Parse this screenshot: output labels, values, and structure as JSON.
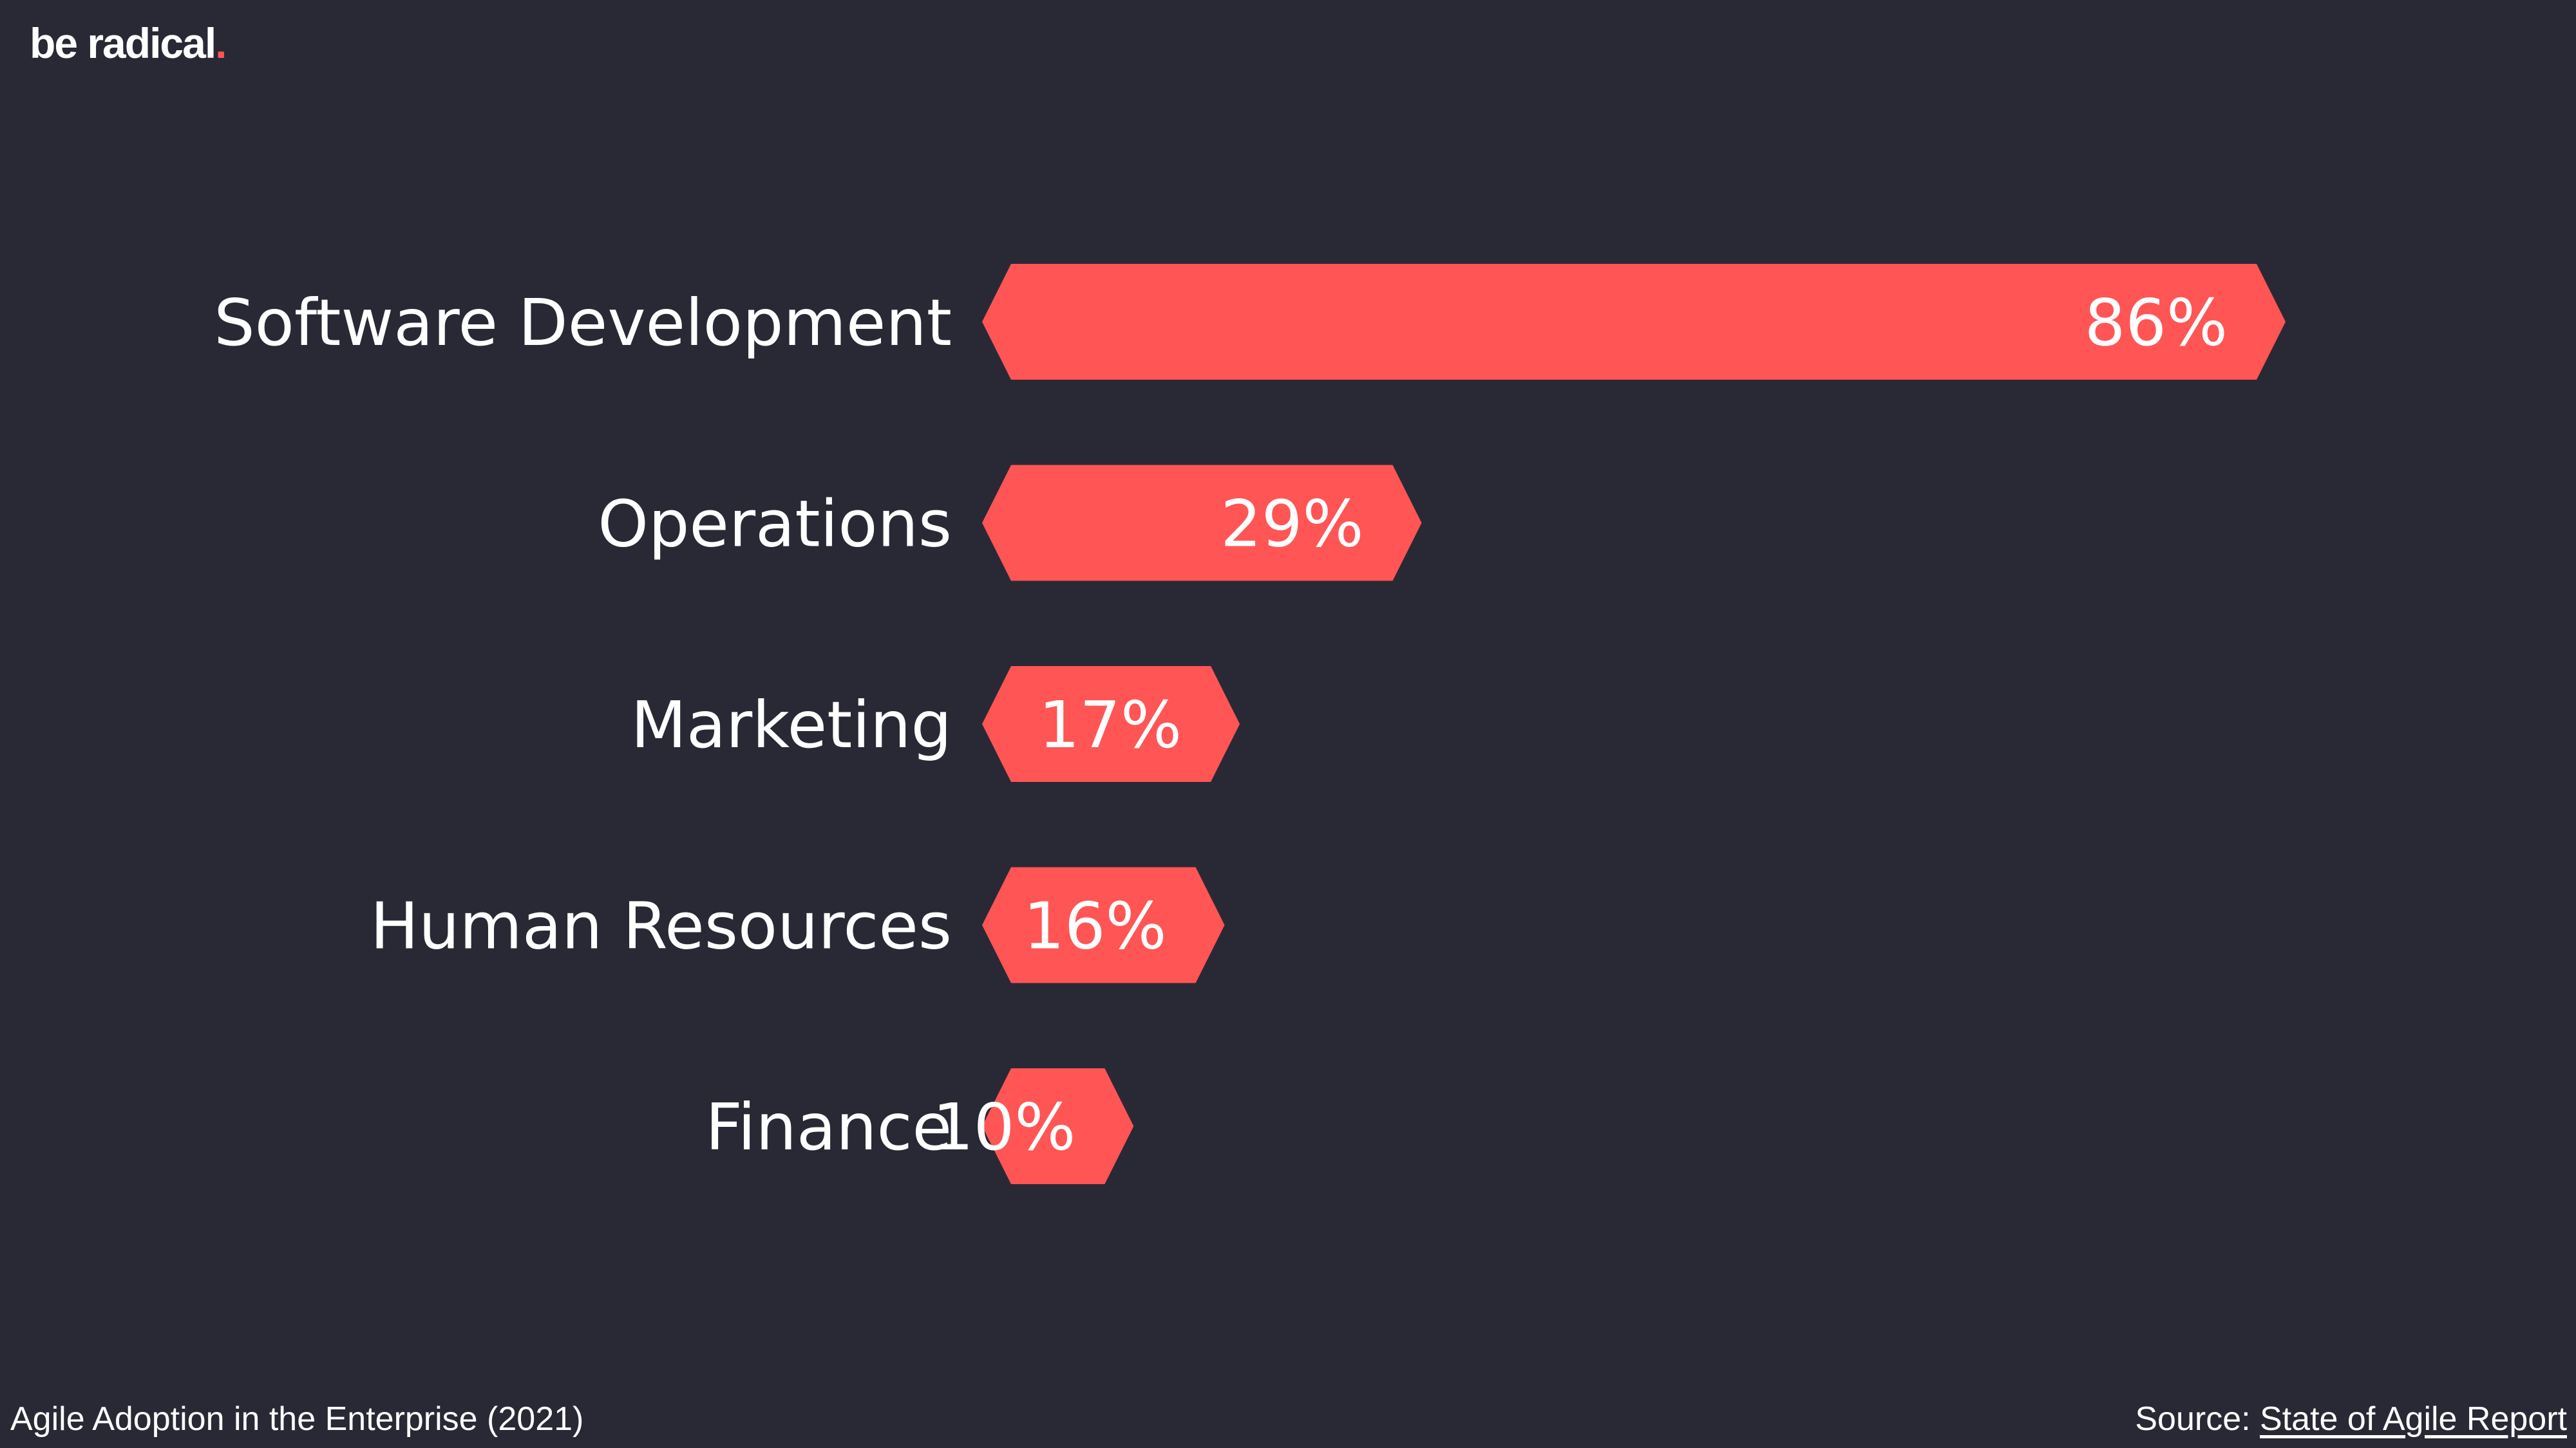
{
  "brand": {
    "name": "be radical",
    "dot": ".",
    "accent_color": "#ff5555"
  },
  "colors": {
    "background": "#292935",
    "bar": "#ff5555",
    "text": "#ffffff"
  },
  "chart_data": {
    "type": "bar",
    "orientation": "horizontal",
    "categories": [
      "Software Development",
      "Operations",
      "Marketing",
      "Human Resources",
      "Finance"
    ],
    "values": [
      86,
      29,
      17,
      16,
      10
    ],
    "value_labels": [
      "86%",
      "29%",
      "17%",
      "16%",
      "10%"
    ],
    "unit": "%",
    "xlim": [
      0,
      100
    ],
    "grid": false,
    "legend": "none"
  },
  "footer": {
    "caption": "Agile Adoption in the Enterprise (2021)",
    "source_prefix": "Source: ",
    "source_link_text": "State of Agile Report"
  }
}
